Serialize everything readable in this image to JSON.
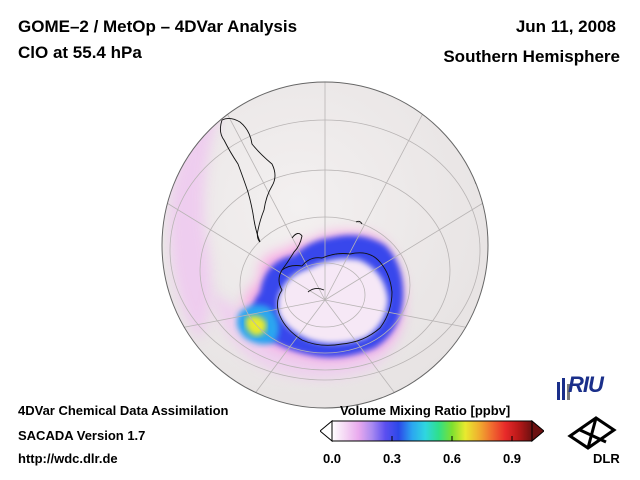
{
  "header": {
    "title_line1": "GOME–2 / MetOp – 4DVar Analysis",
    "title_line2": "ClO at 55.4 hPa",
    "date": "Jun 11, 2008",
    "hemisphere": "Southern Hemisphere"
  },
  "footer": {
    "line1": "4DVar Chemical Data Assimilation",
    "line2": "SACADA Version 1.7",
    "url": "http://wdc.dlr.de"
  },
  "colorbar": {
    "title": "Volume Mixing Ratio [ppbv]",
    "ticks": [
      "0.0",
      "0.3",
      "0.6",
      "0.9"
    ],
    "tick_values": [
      0.0,
      0.3,
      0.6,
      0.9
    ],
    "range": [
      0.0,
      1.0
    ],
    "colors": [
      "#ffffff",
      "#f4d6f4",
      "#e9a9ee",
      "#a98af0",
      "#5b4ff0",
      "#2b48e8",
      "#2ba6f0",
      "#2fd6e0",
      "#2fe08a",
      "#7ee02f",
      "#e8ea2f",
      "#f0b02f",
      "#f06a2f",
      "#e82a2a",
      "#b81818",
      "#6b1010"
    ]
  },
  "map": {
    "projection": "orthographic",
    "ocean_color": "#ece8e8",
    "land_outline_color": "#000000",
    "grid_color": "#b8b4b4"
  },
  "logos": {
    "riu": "RIU",
    "dlr": "DLR"
  }
}
